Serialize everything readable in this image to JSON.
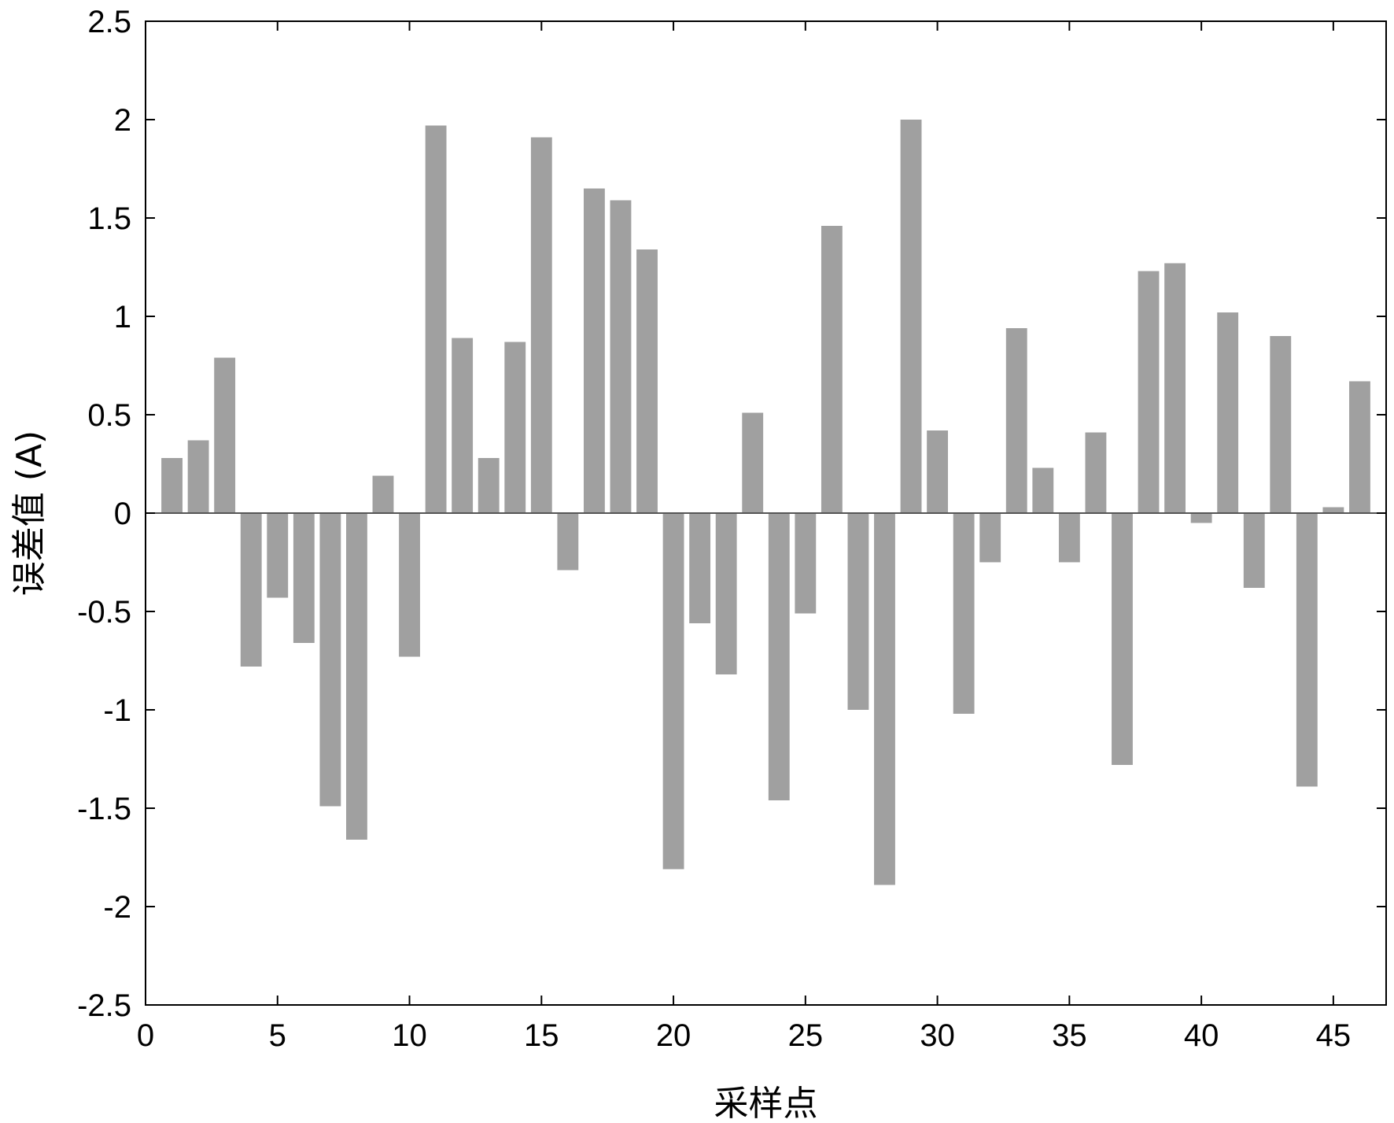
{
  "chart_data": {
    "type": "bar",
    "title": "",
    "xlabel": "采样点",
    "ylabel": "误差值 (A)",
    "xlim": [
      0,
      47
    ],
    "ylim": [
      -2.5,
      2.5
    ],
    "x_ticks": [
      0,
      5,
      10,
      15,
      20,
      25,
      30,
      35,
      40,
      45
    ],
    "y_ticks": [
      2.5,
      2,
      1.5,
      1,
      0.5,
      0,
      -0.5,
      -1,
      -1.5,
      -2,
      -2.5
    ],
    "x_tick_labels": [
      "0",
      "5",
      "10",
      "15",
      "20",
      "25",
      "30",
      "35",
      "40",
      "45"
    ],
    "y_tick_labels": [
      "2.5",
      "2",
      "1.5",
      "1",
      "0.5",
      "0",
      "-0.5",
      "-1",
      "-1.5",
      "-2",
      "-2.5"
    ],
    "grid": false,
    "bar_color": "#a0a0a0",
    "x": [
      1,
      2,
      3,
      4,
      5,
      6,
      7,
      8,
      9,
      10,
      11,
      12,
      13,
      14,
      15,
      16,
      17,
      18,
      19,
      20,
      21,
      22,
      23,
      24,
      25,
      26,
      27,
      28,
      29,
      30,
      31,
      32,
      33,
      34,
      35,
      36,
      37,
      38,
      39,
      40,
      41,
      42,
      43,
      44,
      45,
      46
    ],
    "values": [
      0.28,
      0.37,
      0.79,
      -0.78,
      -0.43,
      -0.66,
      -1.49,
      -1.66,
      0.19,
      -0.73,
      1.97,
      0.89,
      0.28,
      0.87,
      1.91,
      -0.29,
      1.65,
      1.59,
      1.34,
      -1.81,
      -0.56,
      -0.82,
      0.51,
      -1.46,
      -0.51,
      1.46,
      -1.0,
      -1.89,
      2.0,
      0.42,
      -1.02,
      -0.25,
      0.94,
      0.23,
      -0.25,
      0.41,
      -1.28,
      1.23,
      1.27,
      -0.05,
      1.02,
      -0.38,
      0.9,
      -1.39,
      0.03,
      0.67
    ]
  }
}
